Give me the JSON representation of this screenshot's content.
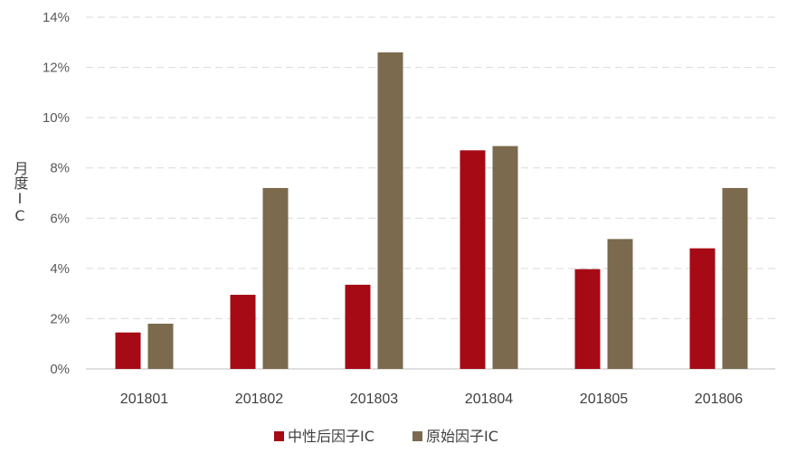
{
  "chart_data": {
    "type": "bar",
    "title": "",
    "xlabel": "",
    "ylabel": "月度IC",
    "categories": [
      "201801",
      "201802",
      "201803",
      "201804",
      "201805",
      "201806"
    ],
    "series": [
      {
        "name": "中性后因子IC",
        "color": "#a50a15",
        "values": [
          1.45,
          2.95,
          3.35,
          8.7,
          3.97,
          4.8
        ]
      },
      {
        "name": "原始因子IC",
        "color": "#7b6a4e",
        "values": [
          1.8,
          7.2,
          12.6,
          8.87,
          5.17,
          7.2
        ]
      }
    ],
    "ylim": [
      0,
      14
    ],
    "yticks": [
      0,
      2,
      4,
      6,
      8,
      10,
      12,
      14
    ],
    "ytick_suffix": "%",
    "grid": true,
    "legend": "bottom-center"
  }
}
